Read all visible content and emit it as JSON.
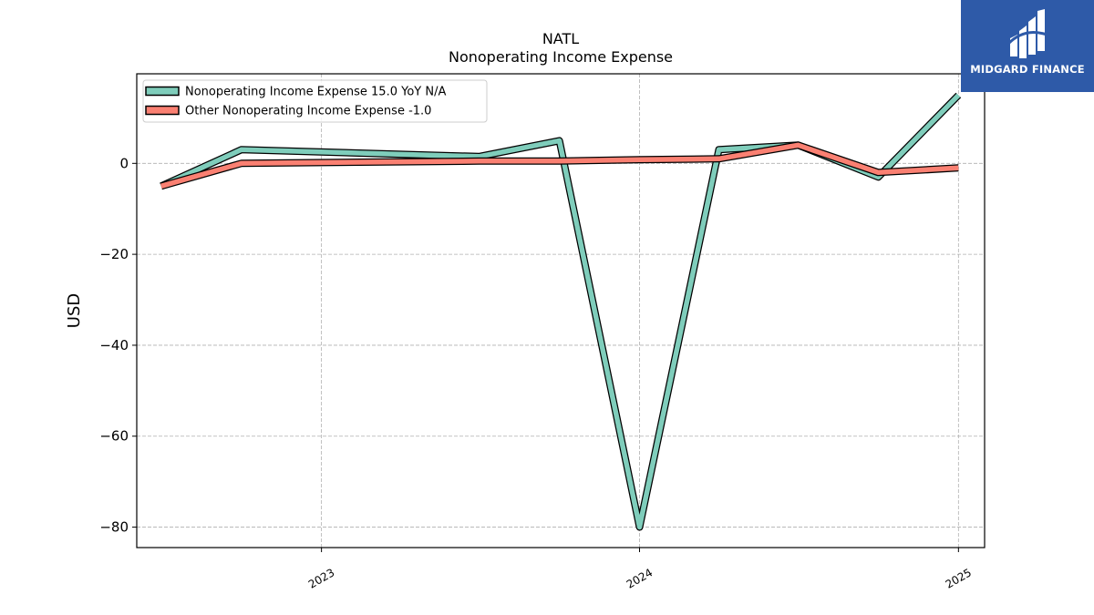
{
  "chart_data": {
    "type": "line",
    "title": "NATL",
    "subtitle": "Nonoperating Income Expense",
    "xlabel": "",
    "ylabel": "USD",
    "x": [
      "2022-07-01",
      "2022-10-01",
      "2023-07-01",
      "2023-10-01",
      "2024-01-01",
      "2024-04-01",
      "2024-07-01",
      "2024-10-01",
      "2025-01-01"
    ],
    "xlim": [
      "2022-06-03",
      "2025-01-31"
    ],
    "ylim": [
      -84.5,
      19.7
    ],
    "x_ticks": [
      {
        "label": "2023",
        "date": "2023-01-01"
      },
      {
        "label": "2024",
        "date": "2024-01-01"
      },
      {
        "label": "2025",
        "date": "2025-01-01"
      }
    ],
    "y_ticks": [
      0,
      -20,
      -40,
      -60,
      -80
    ],
    "y_tick_labels": [
      "0",
      "−20",
      "−40",
      "−60",
      "−80"
    ],
    "grid": true,
    "legend_position": "top-left",
    "series": [
      {
        "name": "Nonoperating Income Expense  15.0 YoY N/A",
        "color": "#7fcdbb",
        "values": [
          -5.0,
          3.0,
          1.5,
          5.0,
          -80.0,
          3.0,
          4.0,
          -3.0,
          15.0
        ]
      },
      {
        "name": "Other Nonoperating Income Expense  -1.0",
        "color": "#fa8072",
        "values": [
          -5.0,
          0.0,
          0.5,
          0.5,
          0.8,
          1.0,
          4.0,
          -2.0,
          -1.0
        ]
      }
    ]
  },
  "logo": {
    "text": "MIDGARD FINANCE",
    "color": "#2e5aa8"
  }
}
